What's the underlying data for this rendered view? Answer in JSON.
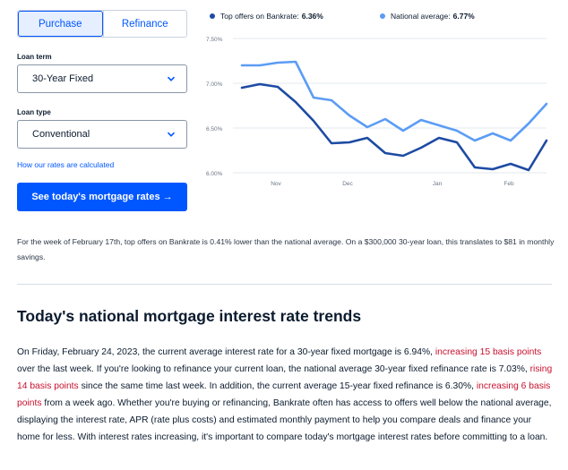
{
  "toggle": {
    "purchase": "Purchase",
    "refinance": "Refinance"
  },
  "loan_term": {
    "label": "Loan term",
    "value": "30-Year Fixed"
  },
  "loan_type": {
    "label": "Loan type",
    "value": "Conventional"
  },
  "rates_link": "How our rates are calculated",
  "cta": "See today's mortgage rates →",
  "legend": {
    "top_offers_label": "Top offers on Bankrate:",
    "top_offers_value": "6.36%",
    "national_label": "National average:",
    "national_value": "6.77%"
  },
  "colors": {
    "accent": "#0157ff",
    "top_offers": "#1d4ba3",
    "national": "#5b9cf6",
    "highlight": "#c8102e"
  },
  "chart_data": {
    "type": "line",
    "y_ticks": [
      "7.50%",
      "7.00%",
      "6.50%",
      "6.00%"
    ],
    "x_ticks": [
      "Nov",
      "Dec",
      "Jan",
      "Feb"
    ],
    "ylim": [
      6.0,
      7.5
    ],
    "grid": true,
    "series": [
      {
        "name": "Top offers on Bankrate",
        "color": "#1d4ba3",
        "values": [
          6.95,
          6.99,
          6.96,
          6.79,
          6.58,
          6.33,
          6.34,
          6.39,
          6.22,
          6.19,
          6.28,
          6.39,
          6.34,
          6.06,
          6.04,
          6.1,
          6.03,
          6.36
        ]
      },
      {
        "name": "National average",
        "color": "#5b9cf6",
        "values": [
          7.2,
          7.2,
          7.23,
          7.24,
          6.84,
          6.81,
          6.64,
          6.51,
          6.6,
          6.47,
          6.59,
          6.53,
          6.47,
          6.36,
          6.44,
          6.36,
          6.55,
          6.77
        ]
      }
    ]
  },
  "note": "For the week of February 17th, top offers on Bankrate is 0.41% lower than the national average. On a $300,000 30-year loan, this translates to $81 in monthly savings.",
  "section_title": "Today's national mortgage interest rate trends",
  "paragraph": {
    "p1": "On Friday, February 24, 2023, the current average interest rate for a 30-year fixed mortgage is 6.94%, ",
    "link1": "increasing 15 basis points",
    "p2": " over the last week. If you're looking to refinance your current loan, the national average 30-year fixed refinance rate is 7.03%, ",
    "link2": "rising 14 basis points",
    "p3": " since the same time last week. In addition, the current average 15-year fixed refinance is 6.30%, ",
    "link3": "increasing 6 basis points",
    "p4": " from a week ago. Whether you're buying or refinancing, Bankrate often has access to offers well below the national average, displaying the interest rate, APR (rate plus costs) and estimated monthly payment to help you compare deals and finance your home for less. With interest rates increasing, it's important to compare today's mortgage interest rates before committing to a loan."
  }
}
